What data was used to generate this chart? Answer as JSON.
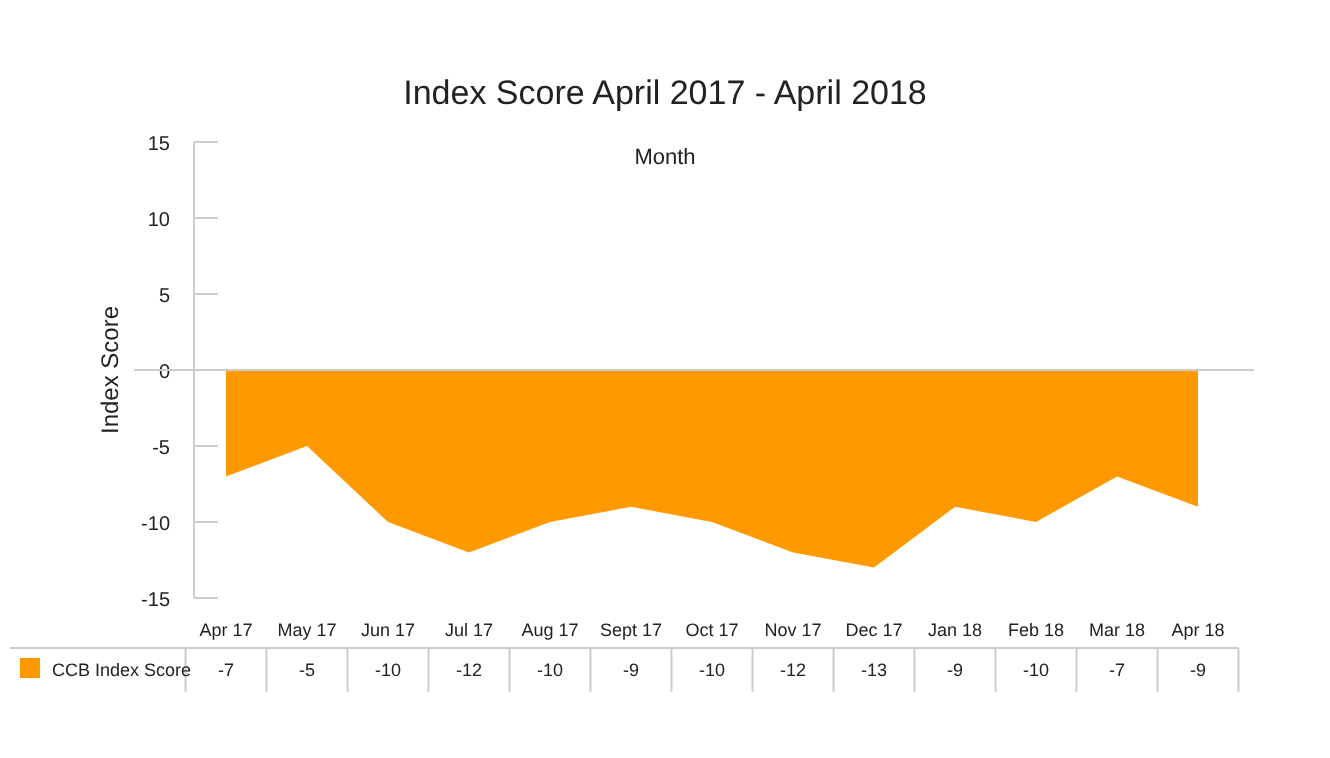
{
  "chart_data": {
    "type": "area",
    "title": "Index Score April 2017 - April 2018",
    "xlabel": "Month",
    "ylabel": "Index Score",
    "categories": [
      "Apr 17",
      "May 17",
      "Jun 17",
      "Jul 17",
      "Aug 17",
      "Sept 17",
      "Oct 17",
      "Nov 17",
      "Dec 17",
      "Jan 18",
      "Feb 18",
      "Mar 18",
      "Apr 18"
    ],
    "series": [
      {
        "name": "CCB Index Score",
        "color": "#ff9900",
        "values": [
          -7,
          -5,
          -10,
          -12,
          -10,
          -9,
          -10,
          -12,
          -13,
          -9,
          -10,
          -7,
          -9
        ]
      }
    ],
    "ylim": [
      -15,
      15
    ],
    "yticks": [
      -15,
      -10,
      -5,
      0,
      5,
      10,
      15
    ],
    "data_labels": true,
    "legend": "bottom"
  }
}
